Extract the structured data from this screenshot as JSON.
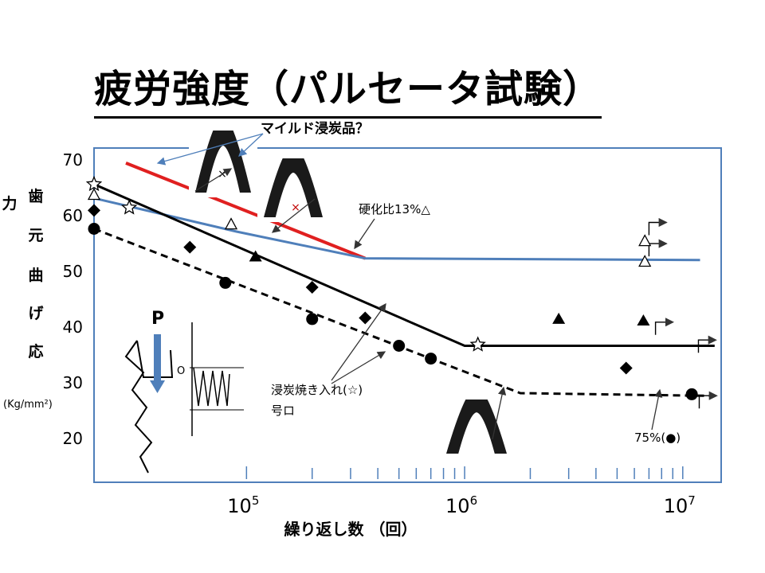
{
  "title": "疲労強度（パルセータ試験）",
  "annotations": {
    "mild": "マイルド浸炭品？",
    "hardness": "硬化比13%△",
    "carburized": "浸炭焼き入れ(☆)",
    "gouro": "号ロ",
    "p75": "75%(●)",
    "P": "P",
    "O": "O"
  },
  "y_label_chars": [
    "歯",
    "元",
    "曲",
    "げ",
    "応",
    "力"
  ],
  "y_unit": "(Kg/mm²)",
  "x_label": "繰り返し数 （回）",
  "chart_data": {
    "type": "scatter",
    "title": "疲労強度（パルセータ試験）",
    "xlabel": "繰り返し数 （回）",
    "ylabel": "歯元曲げ応力 (Kg/mm²)",
    "x_scale": "log",
    "xlim": [
      20000,
      15000000
    ],
    "ylim": [
      12,
      72
    ],
    "x_ticks": [
      {
        "value": 100000,
        "base": "10",
        "exp": "5"
      },
      {
        "value": 1000000,
        "base": "10",
        "exp": "6"
      },
      {
        "value": 10000000,
        "base": "10",
        "exp": "7"
      }
    ],
    "y_ticks": [
      20,
      30,
      40,
      50,
      60,
      70
    ],
    "series": [
      {
        "name": "浸炭焼き入れ(☆)",
        "marker": "star",
        "points": [
          [
            20000,
            65.5
          ],
          [
            29000,
            61.3
          ],
          [
            1150000,
            36.7
          ]
        ]
      },
      {
        "name": "硬化比13%△",
        "marker": "triangle-open",
        "points": [
          [
            20000,
            63.5
          ],
          [
            85000,
            58.2
          ],
          [
            6700000,
            55.2
          ],
          [
            6700000,
            51.5
          ]
        ]
      },
      {
        "name": "号ロ",
        "marker": "triangle-filled",
        "points": [
          [
            110000,
            52.5
          ],
          [
            2700000,
            41.3
          ],
          [
            6600000,
            41
          ]
        ]
      },
      {
        "name": "",
        "marker": "diamond",
        "points": [
          [
            20000,
            60.8
          ],
          [
            55000,
            54.2
          ],
          [
            200000,
            47
          ],
          [
            350000,
            41.5
          ],
          [
            5500000,
            32.5
          ]
        ]
      },
      {
        "name": "75%(●)",
        "marker": "circle",
        "points": [
          [
            20000,
            57.5
          ],
          [
            80000,
            47.8
          ],
          [
            200000,
            41.3
          ],
          [
            500000,
            36.5
          ],
          [
            700000,
            34.2
          ],
          [
            11000000,
            27.8
          ]
        ]
      }
    ],
    "lines": [
      {
        "name": "マイルド浸炭品？",
        "style": "solid",
        "color": "#e02020",
        "points": [
          [
            28000,
            69.3
          ],
          [
            350000,
            52.2
          ]
        ]
      },
      {
        "name": "硬化比13%△",
        "style": "solid",
        "color": "#4f7fba",
        "points": [
          [
            20000,
            63
          ],
          [
            90000,
            57
          ],
          [
            350000,
            52.2
          ],
          [
            12000000,
            51.9
          ]
        ]
      },
      {
        "name": "浸炭焼き入れ(☆)",
        "style": "solid",
        "color": "#000000",
        "points": [
          [
            20000,
            65.5
          ],
          [
            1000000,
            36.5
          ],
          [
            14000000,
            36.5
          ]
        ]
      },
      {
        "name": "75%(●)",
        "style": "dashed",
        "color": "#000000",
        "points": [
          [
            20000,
            57.5
          ],
          [
            1800000,
            28
          ],
          [
            14000000,
            27.5
          ]
        ]
      }
    ],
    "runouts": [
      [
        7000000,
        57.5
      ],
      [
        7000000,
        53.7
      ],
      [
        7500000,
        39.6
      ],
      [
        11800000,
        36.4
      ],
      [
        11900000,
        26.4
      ]
    ],
    "minor_ticks": [
      200000,
      300000,
      400000,
      500000,
      600000,
      700000,
      800000,
      900000,
      2000000,
      3000000,
      4000000,
      5000000,
      6000000,
      7000000,
      8000000,
      9000000
    ],
    "minor_tick_color": "#4f7fba",
    "frame_color": "#4f7fba"
  }
}
